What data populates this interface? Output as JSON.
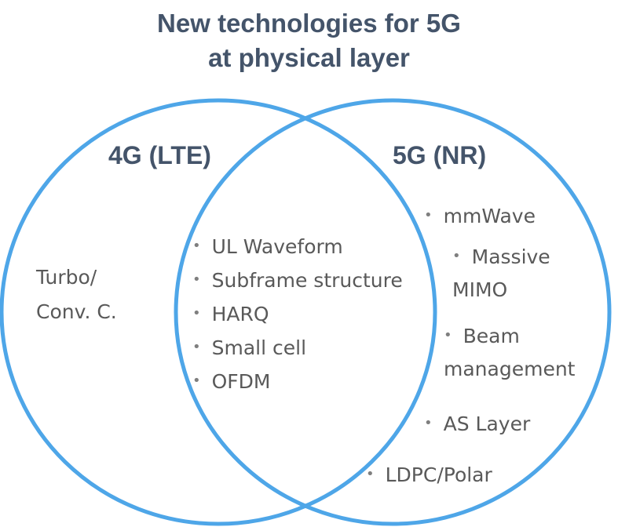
{
  "title": {
    "line1": "New technologies for 5G",
    "line2": "at physical layer"
  },
  "colors": {
    "circle_stroke": "#4ea6e8",
    "title_text": "#44546a",
    "item_text": "#595959"
  },
  "sets": {
    "left": {
      "label": "4G (LTE)"
    },
    "right": {
      "label": "5G (NR)"
    }
  },
  "only_4g": {
    "line1": "Turbo/",
    "line2": "Conv. C."
  },
  "overlap": {
    "items": [
      "UL Waveform",
      "Subframe structure",
      "HARQ",
      "Small cell",
      "OFDM"
    ]
  },
  "only_5g": {
    "mmwave": "mmWave",
    "massive_line1": "Massive",
    "massive_line2": "MIMO",
    "beam_line1": "Beam",
    "beam_line2": "management",
    "as_layer": "AS Layer",
    "ldpc": "LDPC/Polar"
  },
  "bullet_char": "•"
}
